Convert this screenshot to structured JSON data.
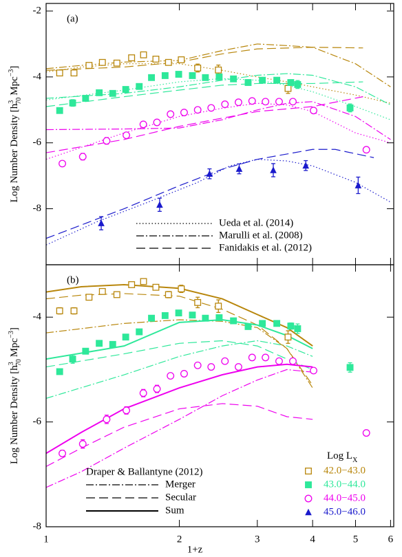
{
  "chart_data": [
    {
      "type": "line",
      "panel_label": "(a)",
      "xscale": "log",
      "xlim": [
        1,
        6.1
      ],
      "xticks": [
        1,
        2,
        3,
        4,
        5,
        6
      ],
      "xticklabels": false,
      "ylim": [
        -9.7,
        -1.77
      ],
      "yticks": [
        -8,
        -6,
        -4,
        -2
      ],
      "ylabel": [
        "Log Number Density [h",
        "3",
        "70",
        "Mpc",
        "−3",
        "]"
      ],
      "models": [
        {
          "name": "Ueda et al. (2014)",
          "linestyle": "dotted",
          "curves": [
            {
              "color": "#b8860b",
              "x": [
                1,
                1.2,
                1.5,
                2,
                2.5,
                3,
                3.5,
                4,
                5,
                6
              ],
              "values": [
                -3.85,
                -3.7,
                -3.6,
                -3.6,
                -3.8,
                -4.0,
                -4.15,
                -4.3,
                -4.55,
                -4.8
              ]
            },
            {
              "color": "#2ee89a",
              "x": [
                1,
                1.5,
                2,
                2.5,
                3,
                3.5,
                4,
                5,
                6
              ],
              "values": [
                -4.7,
                -4.4,
                -4.15,
                -4.05,
                -4.1,
                -4.25,
                -4.45,
                -4.9,
                -5.3
              ]
            },
            {
              "color": "#ee00ee",
              "x": [
                1,
                1.5,
                2,
                2.5,
                3,
                3.5,
                4,
                5,
                6
              ],
              "values": [
                -6.5,
                -5.7,
                -5.2,
                -4.95,
                -4.8,
                -4.85,
                -5.05,
                -5.7,
                -6.0
              ]
            },
            {
              "color": "#1a1acc",
              "x": [
                1,
                1.3,
                1.7,
                2.2,
                2.6,
                3,
                3.5,
                4,
                5,
                6
              ],
              "values": [
                -9.1,
                -8.4,
                -7.8,
                -7.2,
                -6.7,
                -6.5,
                -6.55,
                -6.7,
                -7.2,
                -7.8
              ]
            }
          ]
        },
        {
          "name": "Marulli et al. (2008)",
          "linestyle": "dashdot",
          "curves": [
            {
              "color": "#b8860b",
              "x": [
                1,
                1.2,
                1.5,
                2,
                2.5,
                3,
                3.5,
                4,
                5,
                6
              ],
              "values": [
                -3.75,
                -3.65,
                -3.55,
                -3.5,
                -3.2,
                -3.0,
                -3.05,
                -3.1,
                -3.6,
                -4.3
              ]
            },
            {
              "color": "#2ee89a",
              "x": [
                1,
                1.5,
                2,
                2.5,
                3,
                3.5,
                4,
                5,
                6
              ],
              "values": [
                -4.65,
                -4.5,
                -4.3,
                -4.1,
                -3.95,
                -3.9,
                -3.95,
                -4.3,
                -4.85
              ]
            },
            {
              "color": "#ee00ee",
              "x": [
                1,
                1.5,
                2,
                2.5,
                3,
                3.5,
                4,
                5,
                6
              ],
              "values": [
                -5.6,
                -5.58,
                -5.55,
                -5.3,
                -5.0,
                -4.8,
                -4.75,
                -5.2,
                -5.9
              ]
            }
          ]
        },
        {
          "name": "Fanidakis et al. (2012)",
          "linestyle": "dashed",
          "curves": [
            {
              "color": "#b8860b",
              "x": [
                1,
                1.5,
                2,
                2.5,
                3,
                4,
                5.2
              ],
              "values": [
                -3.8,
                -3.7,
                -3.55,
                -3.3,
                -3.15,
                -3.1,
                -3.12
              ]
            },
            {
              "color": "#2ee89a",
              "x": [
                1,
                1.5,
                2,
                2.5,
                3,
                4,
                5.2
              ],
              "values": [
                -4.9,
                -4.6,
                -4.4,
                -4.25,
                -4.2,
                -4.2,
                -4.15
              ]
            },
            {
              "color": "#ee00ee",
              "x": [
                1,
                1.5,
                2,
                2.5,
                3,
                4,
                5.2
              ],
              "values": [
                -6.3,
                -5.9,
                -5.5,
                -5.25,
                -5.05,
                -4.9,
                -4.6
              ]
            },
            {
              "color": "#1a1acc",
              "x": [
                1,
                1.5,
                2,
                2.5,
                3,
                4,
                4.5,
                5.5
              ],
              "values": [
                -8.9,
                -8.0,
                -7.3,
                -6.8,
                -6.5,
                -6.2,
                -6.2,
                -6.45
              ]
            }
          ]
        }
      ],
      "series": [
        {
          "color": "#b8860b",
          "marker": "open-square",
          "x": [
            1.073,
            1.156,
            1.25,
            1.34,
            1.445,
            1.56,
            1.66,
            1.77,
            1.89,
            2.02,
            2.2,
            2.45,
            3.52
          ],
          "values": [
            -3.88,
            -3.88,
            -3.65,
            -3.56,
            -3.58,
            -3.42,
            -3.33,
            -3.46,
            -3.56,
            -3.48,
            -3.73,
            -3.79,
            -4.35
          ],
          "errors": [
            0.08,
            0.08,
            0.06,
            0.05,
            0.05,
            0.05,
            0.05,
            0.06,
            0.07,
            0.08,
            0.12,
            0.15,
            0.15
          ]
        },
        {
          "color": "#2ee89a",
          "marker": "filled-square",
          "x": [
            1.073,
            1.148,
            1.228,
            1.318,
            1.414,
            1.513,
            1.623,
            1.73,
            1.857,
            1.993,
            2.14,
            2.29,
            2.46,
            2.65,
            2.86,
            3.08,
            3.32,
            3.57,
            3.7,
            4.86
          ],
          "values": [
            -5.02,
            -4.79,
            -4.65,
            -4.48,
            -4.5,
            -4.38,
            -4.29,
            -4.02,
            -3.96,
            -3.92,
            -3.96,
            -4.02,
            -4.0,
            -4.06,
            -4.17,
            -4.1,
            -4.1,
            -4.17,
            -4.23,
            -4.94
          ],
          "errors": [
            0.03,
            0.1,
            0.06,
            0.05,
            0.05,
            0.04,
            0.04,
            0.03,
            0.03,
            0.03,
            0.03,
            0.03,
            0.03,
            0.03,
            0.04,
            0.05,
            0.06,
            0.07,
            0.12,
            0.12
          ]
        },
        {
          "color": "#ee00ee",
          "marker": "open-circle",
          "x": [
            1.088,
            1.21,
            1.37,
            1.518,
            1.658,
            1.78,
            1.91,
            2.05,
            2.2,
            2.36,
            2.535,
            2.72,
            2.92,
            3.13,
            3.36,
            3.61,
            4.02,
            5.29
          ],
          "values": [
            -6.63,
            -6.42,
            -5.94,
            -5.77,
            -5.44,
            -5.38,
            -5.13,
            -5.08,
            -5.0,
            -4.94,
            -4.83,
            -4.77,
            -4.73,
            -4.75,
            -4.75,
            -4.75,
            -5.02,
            -6.21
          ],
          "errors": [
            0.06,
            0.1,
            0.1,
            0.08,
            0.08,
            0.08,
            0.05,
            0.04,
            0.03,
            0.03,
            0.03,
            0.03,
            0.03,
            0.03,
            0.03,
            0.03,
            0.06,
            0.06
          ]
        },
        {
          "color": "#1a1acc",
          "marker": "filled-triangle",
          "x": [
            1.332,
            1.805,
            2.34,
            2.73,
            3.26,
            3.86,
            5.07
          ],
          "values": [
            -8.44,
            -7.88,
            -6.94,
            -6.79,
            -6.83,
            -6.69,
            -7.29
          ],
          "errors": [
            0.2,
            0.2,
            0.15,
            0.15,
            0.2,
            0.15,
            0.25
          ]
        }
      ]
    },
    {
      "type": "line",
      "panel_label": "(b)",
      "xscale": "log",
      "xlim": [
        1,
        6.1
      ],
      "xticks": [
        1,
        2,
        3,
        4,
        5,
        6
      ],
      "xticklabels": true,
      "xlabel": "1+z",
      "ylim": [
        -8,
        -3
      ],
      "yticks": [
        -8,
        -6,
        -4
      ],
      "ylabel": [
        "Log Number Density [h",
        "3",
        "70",
        "Mpc",
        "−3",
        "]"
      ],
      "legend_title": "Draper & Ballantyne (2012)",
      "series_legend_title": [
        "Log L",
        "X"
      ],
      "models": [
        {
          "name": "Merger",
          "linestyle": "dashdot",
          "curves": [
            {
              "color": "#b8860b",
              "x": [
                1,
                1.2,
                1.5,
                2,
                2.5,
                3,
                3.5,
                4
              ],
              "values": [
                -4.3,
                -4.22,
                -4.12,
                -4.05,
                -4.08,
                -4.2,
                -4.6,
                -5.35
              ]
            },
            {
              "color": "#2ee89a",
              "x": [
                1,
                1.5,
                2,
                2.5,
                3,
                3.5,
                4
              ],
              "values": [
                -5.55,
                -5.1,
                -4.75,
                -4.55,
                -4.45,
                -4.55,
                -4.75
              ]
            },
            {
              "color": "#ee00ee",
              "x": [
                1,
                1.2,
                1.5,
                2,
                2.5,
                3,
                3.5,
                4
              ],
              "values": [
                -7.25,
                -6.95,
                -6.5,
                -5.95,
                -5.5,
                -5.2,
                -5.0,
                -5.05
              ]
            }
          ]
        },
        {
          "name": "Secular",
          "linestyle": "dashed",
          "curves": [
            {
              "color": "#b8860b",
              "x": [
                1,
                1.2,
                1.5,
                2,
                2.5,
                3,
                3.5,
                4
              ],
              "values": [
                -3.65,
                -3.58,
                -3.55,
                -3.6,
                -3.85,
                -4.15,
                -4.6,
                -5.3
              ]
            },
            {
              "color": "#2ee89a",
              "x": [
                1,
                1.5,
                2,
                2.5,
                3,
                3.5,
                4
              ],
              "values": [
                -4.95,
                -4.7,
                -4.5,
                -4.45,
                -4.55,
                -4.8,
                -5.0
              ]
            },
            {
              "color": "#ee00ee",
              "x": [
                1,
                1.2,
                1.5,
                2,
                2.5,
                3,
                3.5,
                4
              ],
              "values": [
                -6.85,
                -6.5,
                -6.1,
                -5.75,
                -5.65,
                -5.7,
                -5.9,
                -5.95
              ]
            }
          ]
        },
        {
          "name": "Sum",
          "linestyle": "solid",
          "curves": [
            {
              "color": "#b8860b",
              "x": [
                1,
                1.2,
                1.5,
                2,
                2.5,
                3,
                3.5,
                4
              ],
              "values": [
                -3.52,
                -3.42,
                -3.38,
                -3.45,
                -3.65,
                -3.95,
                -4.2,
                -4.55
              ]
            },
            {
              "color": "#2ee89a",
              "x": [
                1,
                1.5,
                2,
                2.5,
                3,
                3.5,
                4
              ],
              "values": [
                -4.8,
                -4.55,
                -4.1,
                -4.05,
                -4.15,
                -4.35,
                -4.6
              ]
            },
            {
              "color": "#ee00ee",
              "x": [
                1,
                1.2,
                1.5,
                2,
                2.5,
                3,
                3.5,
                4
              ],
              "values": [
                -6.6,
                -6.2,
                -5.75,
                -5.35,
                -5.1,
                -4.95,
                -4.9,
                -4.95
              ]
            }
          ]
        }
      ],
      "series": [
        {
          "name": "42.0−43.0",
          "color": "#b8860b",
          "marker": "open-square",
          "x": [
            1.073,
            1.156,
            1.25,
            1.34,
            1.445,
            1.56,
            1.66,
            1.77,
            1.89,
            2.02,
            2.2,
            2.45,
            3.52
          ],
          "values": [
            -3.88,
            -3.88,
            -3.62,
            -3.51,
            -3.57,
            -3.38,
            -3.32,
            -3.43,
            -3.57,
            -3.46,
            -3.72,
            -3.79,
            -4.38
          ],
          "errors": [
            0.06,
            0.06,
            0.05,
            0.04,
            0.04,
            0.04,
            0.04,
            0.05,
            0.06,
            0.07,
            0.1,
            0.12,
            0.12
          ]
        },
        {
          "name": "43.0−44.0",
          "color": "#2ee89a",
          "marker": "filled-square",
          "x": [
            1.073,
            1.148,
            1.228,
            1.318,
            1.414,
            1.513,
            1.623,
            1.73,
            1.857,
            1.993,
            2.14,
            2.29,
            2.46,
            2.65,
            2.86,
            3.08,
            3.32,
            3.57,
            3.7,
            4.86
          ],
          "values": [
            -5.04,
            -4.8,
            -4.65,
            -4.5,
            -4.52,
            -4.38,
            -4.28,
            -4.02,
            -3.97,
            -3.92,
            -3.96,
            -4.02,
            -4.01,
            -4.07,
            -4.18,
            -4.12,
            -4.12,
            -4.17,
            -4.22,
            -4.96
          ],
          "errors": [
            0.03,
            0.08,
            0.05,
            0.04,
            0.04,
            0.03,
            0.03,
            0.03,
            0.03,
            0.03,
            0.03,
            0.03,
            0.03,
            0.03,
            0.03,
            0.04,
            0.05,
            0.06,
            0.09,
            0.09
          ]
        },
        {
          "name": "44.0−45.0",
          "color": "#ee00ee",
          "marker": "open-circle",
          "x": [
            1.088,
            1.21,
            1.37,
            1.518,
            1.658,
            1.78,
            1.91,
            2.05,
            2.2,
            2.36,
            2.535,
            2.72,
            2.92,
            3.13,
            3.36,
            3.61,
            4.02,
            5.29
          ],
          "values": [
            -6.6,
            -6.42,
            -5.95,
            -5.78,
            -5.45,
            -5.37,
            -5.12,
            -5.08,
            -4.92,
            -4.95,
            -4.84,
            -4.95,
            -4.77,
            -4.77,
            -4.84,
            -4.84,
            -5.02,
            -6.21
          ],
          "errors": [
            0.06,
            0.08,
            0.08,
            0.07,
            0.07,
            0.07,
            0.04,
            0.03,
            0.03,
            0.03,
            0.03,
            0.03,
            0.03,
            0.03,
            0.03,
            0.03,
            0.05,
            0.05
          ]
        },
        {
          "name": "45.0−46.0",
          "color": "#1a1acc",
          "marker": "filled-triangle",
          "x": [],
          "values": [],
          "errors": []
        }
      ]
    }
  ]
}
